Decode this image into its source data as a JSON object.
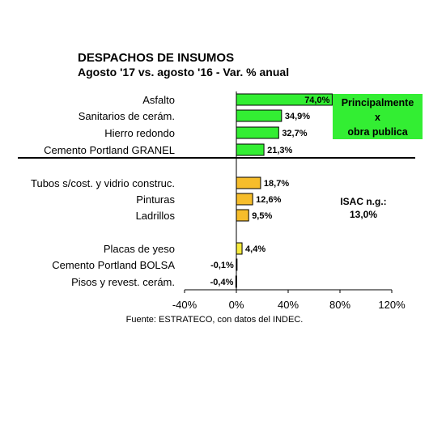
{
  "chart_data": {
    "type": "bar",
    "orientation": "horizontal",
    "title": "DESPACHOS DE INSUMOS",
    "subtitle": "Agosto '17 vs. agosto '16 - Var. % anual",
    "source": "Fuente: ESTRATECO, con datos del INDEC.",
    "categories": [
      "Asfalto",
      "Sanitarios de cerám.",
      "Hierro redondo",
      "Cemento Portland GRANEL",
      "Tubos s/cost. y vidrio construc.",
      "Pinturas",
      "Ladrillos",
      "Placas de yeso",
      "Cemento Portland BOLSA",
      "Pisos y revest. cerám."
    ],
    "values": [
      74.0,
      34.9,
      32.7,
      21.3,
      18.7,
      12.6,
      9.5,
      4.4,
      -0.1,
      -0.4
    ],
    "value_labels": [
      "74,0%",
      "34,9%",
      "32,7%",
      "21,3%",
      "18,7%",
      "12,6%",
      "9,5%",
      "4,4%",
      "-0,1%",
      "-0,4%"
    ],
    "groups": [
      0,
      0,
      0,
      0,
      1,
      1,
      1,
      2,
      2,
      2
    ],
    "group_colors": [
      "#33ee33",
      "#f6bd2b",
      "#f6ea3c"
    ],
    "xlim": [
      -40,
      120
    ],
    "xticks": [
      -40,
      0,
      40,
      80,
      120
    ],
    "xtick_labels": [
      "-40%",
      "0%",
      "40%",
      "80%",
      "120%"
    ],
    "grid": false,
    "annotations": {
      "callout": [
        "Principalmente",
        "x",
        "obra publica"
      ],
      "isac": [
        "ISAC n.g.:",
        "13,0%"
      ]
    }
  }
}
